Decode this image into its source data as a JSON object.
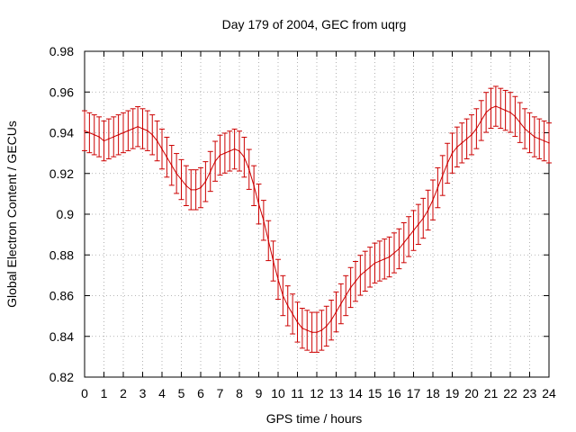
{
  "chart_data": {
    "type": "line",
    "title": "Day 179 of 2004, GEC from uqrg",
    "xlabel": "GPS time / hours",
    "ylabel": "Global Electron Content / GECUs",
    "xlim": [
      0,
      24
    ],
    "ylim": [
      0.82,
      0.98
    ],
    "grid": true,
    "x_ticks": [
      "0",
      "1",
      "2",
      "3",
      "4",
      "5",
      "6",
      "7",
      "8",
      "9",
      "10",
      "11",
      "12",
      "13",
      "14",
      "15",
      "16",
      "17",
      "18",
      "19",
      "20",
      "21",
      "22",
      "23",
      "24"
    ],
    "y_ticks": [
      "0.82",
      "0.84",
      "0.86",
      "0.88",
      "0.9",
      "0.92",
      "0.94",
      "0.96",
      "0.98"
    ],
    "series_color": "#cc0000",
    "series": [
      {
        "name": "GEC",
        "error": 0.0098,
        "x": [
          0,
          0.25,
          0.5,
          0.75,
          1,
          1.25,
          1.5,
          1.75,
          2,
          2.25,
          2.5,
          2.75,
          3,
          3.25,
          3.5,
          3.75,
          4,
          4.25,
          4.5,
          4.75,
          5,
          5.25,
          5.5,
          5.75,
          6,
          6.25,
          6.5,
          6.75,
          7,
          7.25,
          7.5,
          7.75,
          8,
          8.25,
          8.5,
          8.75,
          9,
          9.25,
          9.5,
          9.75,
          10,
          10.25,
          10.5,
          10.75,
          11,
          11.25,
          11.5,
          11.75,
          12,
          12.25,
          12.5,
          12.75,
          13,
          13.25,
          13.5,
          13.75,
          14,
          14.25,
          14.5,
          14.75,
          15,
          15.25,
          15.5,
          15.75,
          16,
          16.25,
          16.5,
          16.75,
          17,
          17.25,
          17.5,
          17.75,
          18,
          18.25,
          18.5,
          18.75,
          19,
          19.25,
          19.5,
          19.75,
          20,
          20.25,
          20.5,
          20.75,
          21,
          21.25,
          21.5,
          21.75,
          22,
          22.25,
          22.5,
          22.75,
          23,
          23.25,
          23.5,
          23.75,
          24
        ],
        "y": [
          0.941,
          0.94,
          0.939,
          0.938,
          0.936,
          0.937,
          0.938,
          0.939,
          0.94,
          0.941,
          0.942,
          0.943,
          0.942,
          0.941,
          0.939,
          0.936,
          0.932,
          0.928,
          0.924,
          0.92,
          0.917,
          0.914,
          0.912,
          0.912,
          0.913,
          0.916,
          0.921,
          0.926,
          0.929,
          0.93,
          0.931,
          0.932,
          0.931,
          0.928,
          0.922,
          0.914,
          0.905,
          0.897,
          0.887,
          0.877,
          0.868,
          0.86,
          0.855,
          0.851,
          0.847,
          0.844,
          0.843,
          0.842,
          0.842,
          0.843,
          0.845,
          0.848,
          0.852,
          0.856,
          0.86,
          0.864,
          0.867,
          0.87,
          0.872,
          0.874,
          0.876,
          0.877,
          0.878,
          0.879,
          0.881,
          0.883,
          0.886,
          0.889,
          0.892,
          0.895,
          0.898,
          0.902,
          0.907,
          0.913,
          0.919,
          0.925,
          0.93,
          0.933,
          0.935,
          0.937,
          0.939,
          0.942,
          0.946,
          0.95,
          0.952,
          0.953,
          0.952,
          0.951,
          0.95,
          0.948,
          0.945,
          0.942,
          0.94,
          0.938,
          0.937,
          0.936,
          0.935
        ]
      }
    ]
  }
}
